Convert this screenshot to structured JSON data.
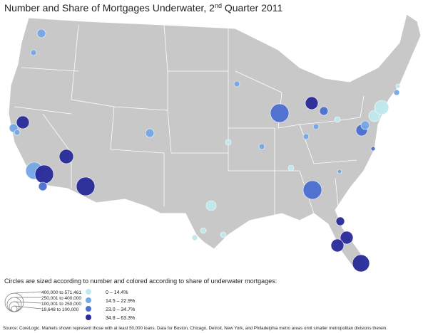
{
  "header": {
    "title": "Number and Share of Mortgages Underwater, 2",
    "title_superscript": "nd",
    "title_end": " Quarter 2011"
  },
  "legend": {
    "caption": "Circles are sized according to number  and colored according to share of underwater mortgages:",
    "size_labels": [
      "400,000 to 571,461",
      "250,001 to 400,000",
      "100,001 to 250,000",
      "19,648 to 100,000"
    ],
    "color_labels": [
      "0 – 14.4%",
      "14.5 – 22.9%",
      "23.0 – 34.7%",
      "34.8 – 63.3%"
    ]
  },
  "footer": {
    "source": "Source: CoreLogic.  Markets shown represent those with at least 50,000 loans.  Data for Boston, Chicago, Detroit, New York, and Philadelphia metro areas omit smaller metropolitan divisions therein."
  }
}
